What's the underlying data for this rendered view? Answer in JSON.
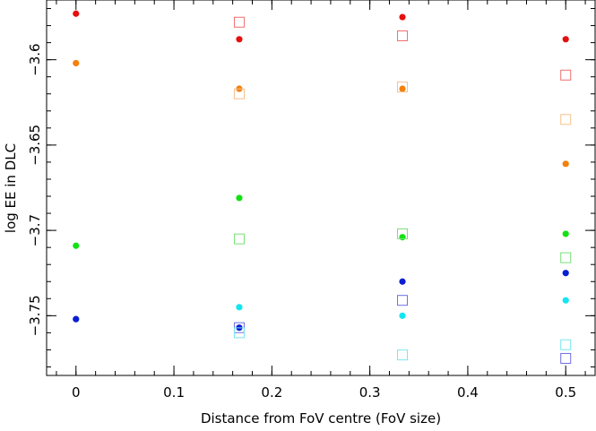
{
  "chart_data": {
    "type": "scatter",
    "title": "",
    "xlabel": "Distance from FoV centre (FoV size)",
    "ylabel": "log EE in DLC",
    "xlim": [
      -0.03,
      0.53
    ],
    "ylim": [
      -3.785,
      -3.565
    ],
    "x_ticks": [
      {
        "value": 0,
        "label": "0"
      },
      {
        "value": 0.1,
        "label": "0.1"
      },
      {
        "value": 0.2,
        "label": "0.2"
      },
      {
        "value": 0.3,
        "label": "0.3"
      },
      {
        "value": 0.4,
        "label": "0.4"
      },
      {
        "value": 0.5,
        "label": "0.5"
      }
    ],
    "x_minor_step": 0.02,
    "y_ticks": [
      {
        "value": -3.6,
        "label": "−3.6"
      },
      {
        "value": -3.65,
        "label": "−3.65"
      },
      {
        "value": -3.7,
        "label": "−3.7"
      },
      {
        "value": -3.75,
        "label": "−3.75"
      }
    ],
    "y_minor_step": 0.01,
    "grid": false,
    "legend": "none",
    "series": [
      {
        "marker": "circle",
        "color": "#e41010",
        "x": [
          0,
          0.1667,
          0.3333,
          0.5
        ],
        "y": [
          -3.573,
          -3.588,
          -3.575,
          -3.588
        ]
      },
      {
        "marker": "circle",
        "color": "#f5800a",
        "x": [
          0,
          0.1667,
          0.3333,
          0.5
        ],
        "y": [
          -3.602,
          -3.617,
          -3.617,
          -3.661
        ]
      },
      {
        "marker": "circle",
        "color": "#14e014",
        "x": [
          0,
          0.1667,
          0.3333,
          0.5
        ],
        "y": [
          -3.709,
          -3.681,
          -3.704,
          -3.702
        ]
      },
      {
        "marker": "circle",
        "color": "#0a1ed2",
        "x": [
          0,
          0.1667,
          0.3333,
          0.5
        ],
        "y": [
          -3.752,
          -3.757,
          -3.73,
          -3.725
        ]
      },
      {
        "marker": "circle",
        "color": "#14e6f0",
        "x": [
          0.1667,
          0.3333,
          0.5
        ],
        "y": [
          -3.745,
          -3.75,
          -3.741
        ]
      },
      {
        "marker": "square",
        "color": "#f07070",
        "x": [
          0.1667,
          0.3333,
          0.5
        ],
        "y": [
          -3.578,
          -3.586,
          -3.609
        ]
      },
      {
        "marker": "square",
        "color": "#f5c08c",
        "x": [
          0.1667,
          0.3333,
          0.5
        ],
        "y": [
          -3.62,
          -3.616,
          -3.635
        ]
      },
      {
        "marker": "square",
        "color": "#78e078",
        "x": [
          0.1667,
          0.3333,
          0.5
        ],
        "y": [
          -3.705,
          -3.702,
          -3.716
        ]
      },
      {
        "marker": "square",
        "color": "#6e6ee6",
        "x": [
          0.1667,
          0.3333,
          0.5
        ],
        "y": [
          -3.757,
          -3.741,
          -3.775
        ]
      },
      {
        "marker": "square",
        "color": "#78e6f0",
        "x": [
          0.1667,
          0.3333,
          0.5
        ],
        "y": [
          -3.76,
          -3.773,
          -3.767
        ]
      }
    ]
  }
}
